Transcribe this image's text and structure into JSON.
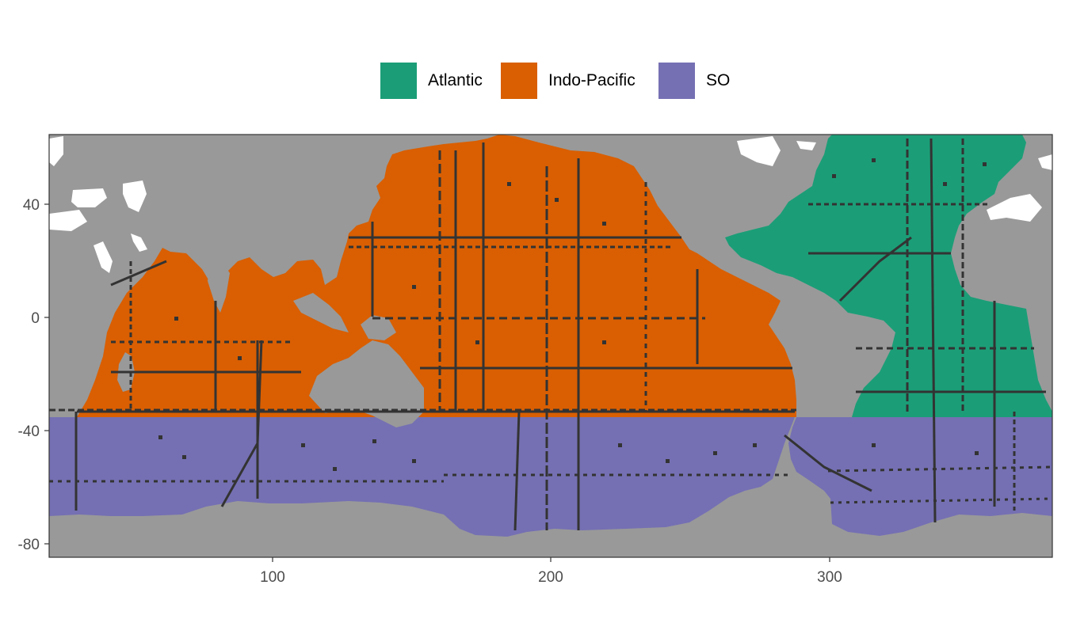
{
  "legend": {
    "items": [
      {
        "label": "Atlantic",
        "color": "#1b9e77"
      },
      {
        "label": "Indo-Pacific",
        "color": "#d95f02"
      },
      {
        "label": "SO",
        "color": "#7570b3"
      }
    ]
  },
  "map": {
    "land_color": "#999999",
    "ice_color": "#ffffff",
    "track_color": "#333333",
    "x_axis": {
      "range": [
        20,
        380
      ],
      "ticks": [
        100,
        200,
        300
      ],
      "tick_labels": [
        "100",
        "200",
        "300"
      ]
    },
    "y_axis": {
      "range": [
        -85,
        65
      ],
      "ticks": [
        40,
        0,
        -40,
        -80
      ],
      "tick_labels": [
        "40",
        "0",
        "-40",
        "-80"
      ]
    },
    "boundaries": {
      "so_north_lat": -35
    }
  }
}
